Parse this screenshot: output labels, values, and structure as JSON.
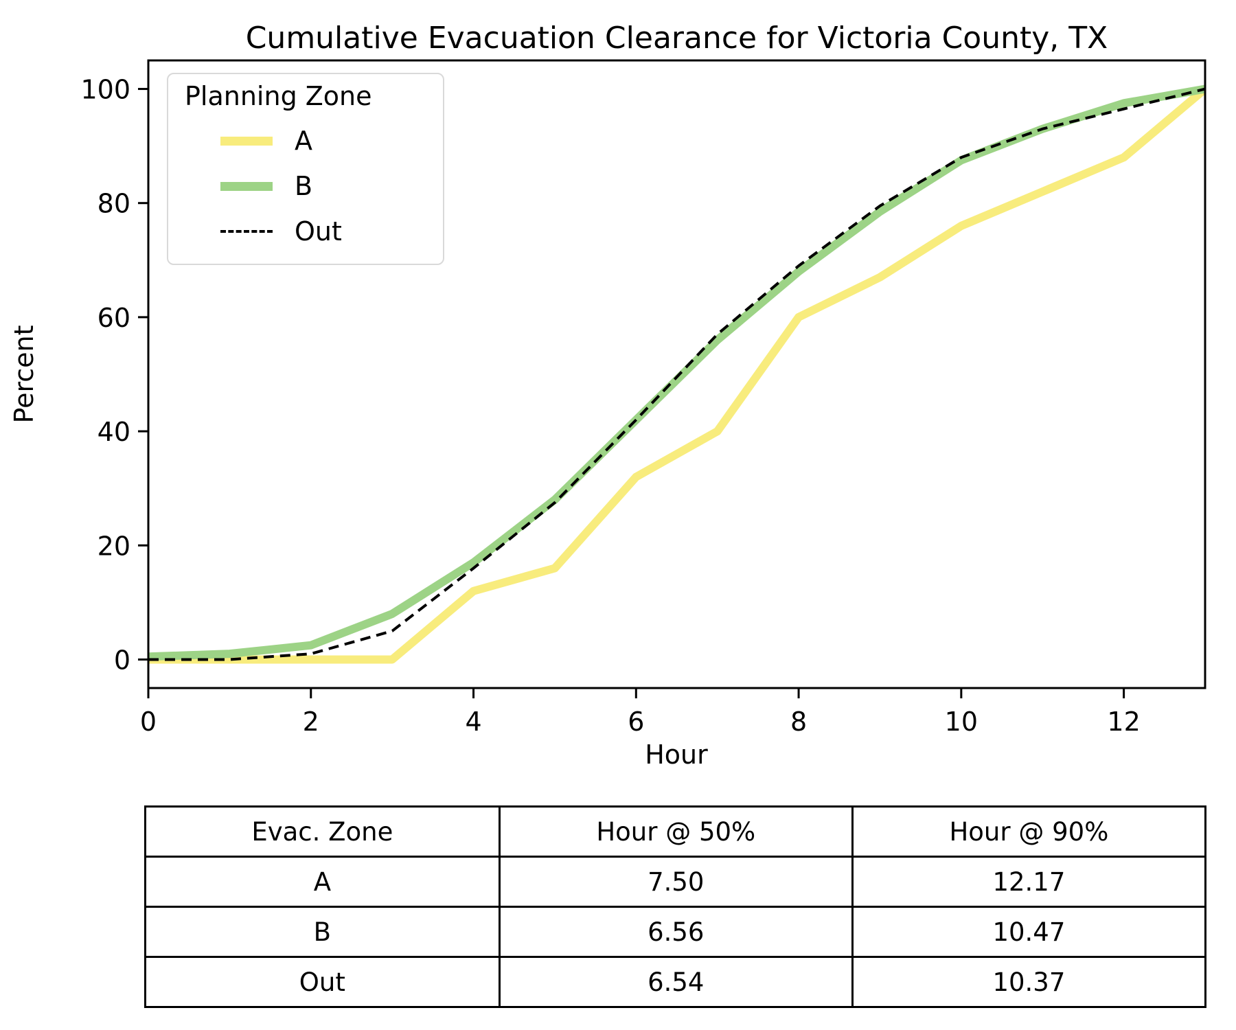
{
  "chart_data": {
    "type": "line",
    "title": "Cumulative Evacuation Clearance for Victoria County, TX",
    "xlabel": "Hour",
    "ylabel": "Percent",
    "xlim": [
      0,
      13
    ],
    "ylim": [
      -5,
      105
    ],
    "xticks": [
      0,
      2,
      4,
      6,
      8,
      10,
      12
    ],
    "yticks": [
      0,
      20,
      40,
      60,
      80,
      100
    ],
    "grid": false,
    "x": [
      0,
      1,
      2,
      3,
      4,
      5,
      6,
      7,
      8,
      9,
      10,
      11,
      12,
      13
    ],
    "series": [
      {
        "name": "A",
        "color": "#f8ec7d",
        "style": "solid",
        "width": 12,
        "values": [
          0,
          0,
          0,
          0,
          12,
          16,
          32,
          40,
          60,
          67,
          76,
          82,
          88,
          100
        ]
      },
      {
        "name": "B",
        "color": "#9dd386",
        "style": "solid",
        "width": 12,
        "values": [
          0.5,
          1,
          2.5,
          8,
          17,
          28,
          42,
          56,
          68,
          78.5,
          87.5,
          93,
          97.5,
          100
        ]
      },
      {
        "name": "Out",
        "color": "#000000",
        "style": "dashed",
        "width": 4,
        "values": [
          0,
          0,
          1,
          5,
          16,
          27.5,
          42,
          57,
          69,
          79.5,
          88,
          93,
          96.5,
          100
        ]
      }
    ],
    "legend": {
      "title": "Planning Zone",
      "position": "upper left",
      "entries": [
        "A",
        "B",
        "Out"
      ]
    }
  },
  "table": {
    "headers": [
      "Evac. Zone",
      "Hour @ 50%",
      "Hour @ 90%"
    ],
    "rows": [
      {
        "zone": "A",
        "h50": "7.50",
        "h90": "12.17"
      },
      {
        "zone": "B",
        "h50": "6.56",
        "h90": "10.47"
      },
      {
        "zone": "Out",
        "h50": "6.54",
        "h90": "10.37"
      }
    ]
  }
}
